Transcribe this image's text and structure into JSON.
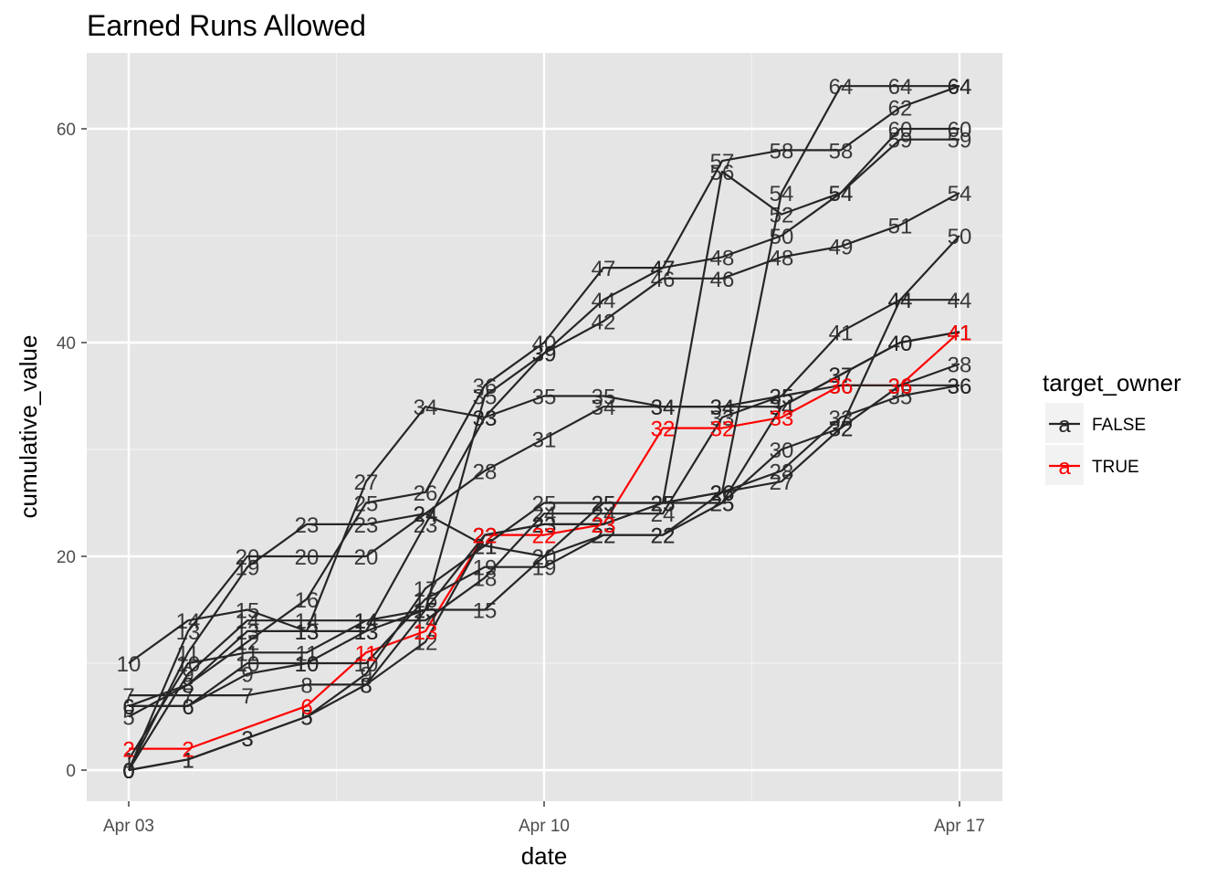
{
  "chart_data": {
    "type": "line",
    "title": "Earned Runs Allowed",
    "xlabel": "date",
    "ylabel": "cumulative_value",
    "x": [
      "Apr 03",
      "Apr 04",
      "Apr 05",
      "Apr 06",
      "Apr 07",
      "Apr 08",
      "Apr 09",
      "Apr 10",
      "Apr 11",
      "Apr 12",
      "Apr 13",
      "Apr 14",
      "Apr 15",
      "Apr 16",
      "Apr 17"
    ],
    "x_ticks": [
      "Apr 03",
      "Apr 10",
      "Apr 17"
    ],
    "y_ticks": [
      0,
      20,
      40,
      60
    ],
    "ylim": [
      -3,
      67
    ],
    "grid": true,
    "legend": {
      "title": "target_owner",
      "position": "right",
      "key_glyph": "a",
      "entries": [
        {
          "label": "FALSE",
          "color": "#262626"
        },
        {
          "label": "TRUE",
          "color": "#ff0000"
        }
      ]
    },
    "series": [
      {
        "group": "TRUE",
        "color": "#ff0000",
        "points": [
          [
            0,
            2
          ],
          [
            1,
            2
          ],
          [
            3,
            6
          ],
          [
            4,
            11
          ],
          [
            5,
            13
          ],
          [
            6,
            22
          ],
          [
            7,
            22
          ],
          [
            8,
            23
          ],
          [
            9,
            32
          ],
          [
            10,
            32
          ],
          [
            11,
            33
          ],
          [
            12,
            36
          ],
          [
            13,
            36
          ],
          [
            14,
            41
          ]
        ]
      },
      {
        "group": "FALSE",
        "color": "#262626",
        "points": [
          [
            0,
            10
          ],
          [
            1,
            14
          ],
          [
            2,
            15
          ],
          [
            3,
            13
          ],
          [
            4,
            13
          ],
          [
            5,
            15
          ],
          [
            6,
            15
          ],
          [
            8,
            25
          ],
          [
            9,
            25
          ],
          [
            10,
            26
          ],
          [
            11,
            28
          ],
          [
            12,
            33
          ],
          [
            13,
            35
          ],
          [
            14,
            36
          ]
        ]
      },
      {
        "group": "FALSE",
        "color": "#262626",
        "points": [
          [
            0,
            7
          ],
          [
            1,
            7
          ],
          [
            2,
            7
          ],
          [
            3,
            8
          ],
          [
            4,
            8
          ],
          [
            5,
            12
          ],
          [
            6,
            22
          ],
          [
            7,
            23
          ],
          [
            8,
            23
          ],
          [
            9,
            25
          ],
          [
            10,
            26
          ],
          [
            11,
            27
          ],
          [
            12,
            32
          ],
          [
            13,
            36
          ],
          [
            14,
            38
          ]
        ]
      },
      {
        "group": "FALSE",
        "color": "#262626",
        "points": [
          [
            0,
            6
          ],
          [
            1,
            6
          ],
          [
            2,
            10
          ],
          [
            3,
            10
          ],
          [
            4,
            10
          ],
          [
            5,
            16
          ],
          [
            6,
            19
          ],
          [
            7,
            19
          ],
          [
            8,
            22
          ],
          [
            9,
            22
          ],
          [
            10,
            26
          ],
          [
            11,
            54
          ],
          [
            12,
            64
          ],
          [
            13,
            64
          ],
          [
            14,
            64
          ]
        ]
      },
      {
        "group": "FALSE",
        "color": "#262626",
        "points": [
          [
            0,
            0
          ],
          [
            1,
            1
          ],
          [
            2,
            3
          ],
          [
            3,
            5
          ],
          [
            4,
            9
          ],
          [
            5,
            17
          ],
          [
            6,
            21
          ],
          [
            7,
            25
          ],
          [
            8,
            25
          ],
          [
            9,
            25
          ],
          [
            10,
            25
          ],
          [
            11,
            34
          ],
          [
            12,
            37
          ],
          [
            13,
            40
          ],
          [
            14,
            41
          ]
        ]
      },
      {
        "group": "FALSE",
        "color": "#262626",
        "points": [
          [
            0,
            1
          ],
          [
            1,
            10
          ],
          [
            2,
            11
          ],
          [
            3,
            11
          ],
          [
            4,
            14
          ],
          [
            5,
            14
          ],
          [
            6,
            18
          ],
          [
            7,
            24
          ],
          [
            8,
            24
          ],
          [
            9,
            24
          ],
          [
            10,
            33
          ],
          [
            11,
            35
          ],
          [
            12,
            41
          ],
          [
            13,
            44
          ],
          [
            14,
            44
          ]
        ]
      },
      {
        "group": "FALSE",
        "color": "#262626",
        "points": [
          [
            0,
            0
          ],
          [
            1,
            9
          ],
          [
            2,
            14
          ],
          [
            3,
            14
          ],
          [
            4,
            14
          ],
          [
            5,
            15
          ],
          [
            6,
            35
          ],
          [
            7,
            39
          ],
          [
            8,
            44
          ],
          [
            9,
            47
          ],
          [
            10,
            48
          ],
          [
            11,
            50
          ],
          [
            12,
            54
          ],
          [
            13,
            60
          ],
          [
            14,
            60
          ]
        ]
      },
      {
        "group": "FALSE",
        "color": "#262626",
        "points": [
          [
            0,
            5
          ],
          [
            1,
            8
          ],
          [
            2,
            12
          ],
          [
            3,
            16
          ],
          [
            4,
            25
          ],
          [
            5,
            26
          ],
          [
            6,
            36
          ],
          [
            7,
            40
          ],
          [
            8,
            47
          ],
          [
            9,
            47
          ],
          [
            10,
            57
          ],
          [
            11,
            58
          ],
          [
            12,
            58
          ],
          [
            13,
            62
          ],
          [
            14,
            64
          ]
        ]
      },
      {
        "group": "FALSE",
        "color": "#262626",
        "points": [
          [
            0,
            0
          ],
          [
            1,
            13
          ],
          [
            2,
            20
          ],
          [
            3,
            20
          ],
          [
            4,
            20
          ],
          [
            5,
            24
          ],
          [
            6,
            28
          ],
          [
            7,
            31
          ],
          [
            8,
            34
          ],
          [
            9,
            34
          ],
          [
            10,
            34
          ],
          [
            11,
            35
          ],
          [
            12,
            36
          ],
          [
            13,
            36
          ],
          [
            14,
            36
          ]
        ]
      },
      {
        "group": "FALSE",
        "color": "#262626",
        "points": [
          [
            0,
            6
          ],
          [
            1,
            6
          ],
          [
            2,
            9
          ],
          [
            3,
            10
          ],
          [
            4,
            13
          ],
          [
            5,
            23
          ],
          [
            6,
            33
          ],
          [
            7,
            35
          ],
          [
            8,
            35
          ],
          [
            9,
            34
          ],
          [
            10,
            34
          ],
          [
            11,
            34
          ],
          [
            12,
            37
          ],
          [
            13,
            40
          ],
          [
            14,
            41
          ]
        ]
      },
      {
        "group": "FALSE",
        "color": "#262626",
        "points": [
          [
            0,
            0
          ],
          [
            1,
            11
          ],
          [
            2,
            19
          ],
          [
            3,
            23
          ],
          [
            4,
            23
          ],
          [
            5,
            24
          ],
          [
            6,
            21
          ],
          [
            7,
            20
          ],
          [
            8,
            22
          ],
          [
            9,
            22
          ],
          [
            10,
            25
          ],
          [
            11,
            30
          ],
          [
            12,
            32
          ],
          [
            13,
            44
          ],
          [
            14,
            50
          ]
        ]
      },
      {
        "group": "FALSE",
        "color": "#262626",
        "points": [
          [
            0,
            6
          ],
          [
            1,
            8
          ],
          [
            2,
            13
          ],
          [
            3,
            13
          ],
          [
            4,
            27
          ],
          [
            5,
            34
          ],
          [
            6,
            33
          ],
          [
            7,
            39
          ],
          [
            8,
            42
          ],
          [
            9,
            46
          ],
          [
            10,
            46
          ],
          [
            11,
            48
          ],
          [
            12,
            49
          ],
          [
            13,
            51
          ],
          [
            14,
            54
          ]
        ]
      },
      {
        "group": "FALSE",
        "color": "#262626",
        "points": [
          [
            0,
            0
          ],
          [
            1,
            1
          ],
          [
            2,
            3
          ],
          [
            3,
            5
          ],
          [
            4,
            8
          ],
          [
            5,
            15
          ],
          [
            6,
            22
          ],
          [
            7,
            23
          ],
          [
            8,
            23
          ],
          [
            9,
            25
          ],
          [
            10,
            56
          ],
          [
            11,
            52
          ],
          [
            12,
            54
          ],
          [
            13,
            59
          ],
          [
            14,
            59
          ]
        ]
      }
    ]
  }
}
